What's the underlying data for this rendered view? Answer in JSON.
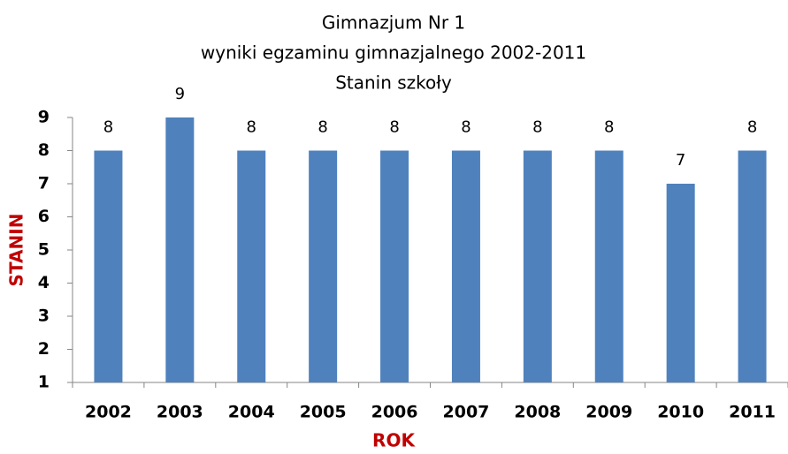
{
  "chart_data": {
    "type": "bar",
    "title": [
      "Gimnazjum Nr 1",
      "wyniki  egzaminu gimnazjalnego 2002-2011",
      "Stanin szkoły"
    ],
    "x_label": "ROK",
    "y_label": "STANIN",
    "categories": [
      "2002",
      "2003",
      "2004",
      "2005",
      "2006",
      "2007",
      "2008",
      "2009",
      "2010",
      "2011"
    ],
    "values": [
      8,
      9,
      8,
      8,
      8,
      8,
      8,
      8,
      7,
      8
    ],
    "color": "#4f81bd",
    "label_color": "#c00000",
    "ylim": [
      1,
      9
    ],
    "yticks": [
      1,
      2,
      3,
      4,
      5,
      6,
      7,
      8,
      9
    ],
    "grid": false
  }
}
